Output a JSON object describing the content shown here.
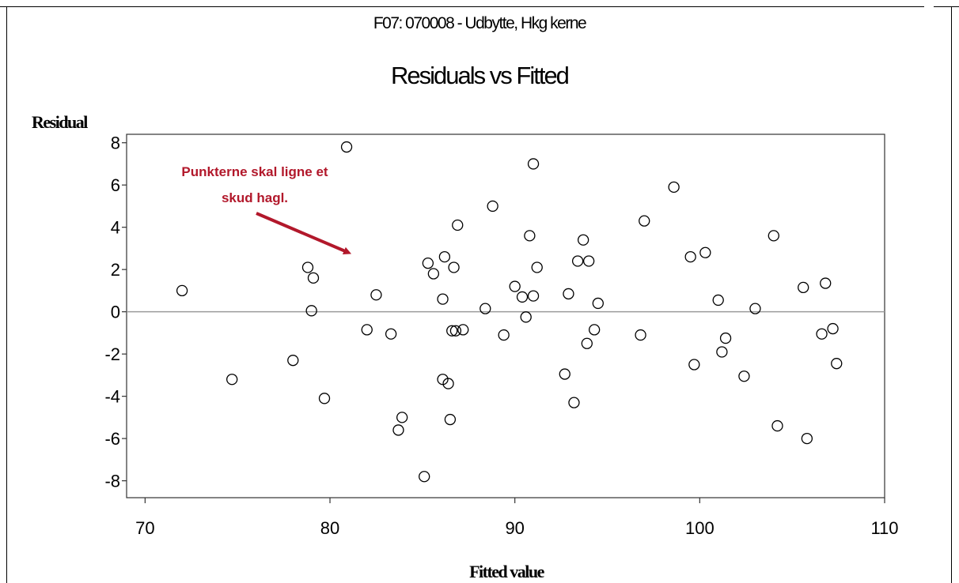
{
  "supertitle": "F07: 070008 - Udbytte, Hkg kerne",
  "chart_data": {
    "type": "scatter",
    "title": "Residuals vs Fitted",
    "xlabel": "Fitted value",
    "ylabel": "Residual",
    "xlim": [
      69,
      110
    ],
    "ylim": [
      -8.8,
      8.4
    ],
    "xticks": [
      70,
      80,
      90,
      100,
      110
    ],
    "yticks": [
      -8,
      -6,
      -4,
      -2,
      0,
      2,
      4,
      6,
      8
    ],
    "reference_line_y": 0,
    "grid": false,
    "marker": "open-circle",
    "points": [
      {
        "x": 72.0,
        "y": 1.0
      },
      {
        "x": 74.7,
        "y": -3.2
      },
      {
        "x": 78.0,
        "y": -2.3
      },
      {
        "x": 78.8,
        "y": 2.1
      },
      {
        "x": 79.0,
        "y": 0.05
      },
      {
        "x": 79.1,
        "y": 1.6
      },
      {
        "x": 79.7,
        "y": -4.1
      },
      {
        "x": 80.9,
        "y": 7.8
      },
      {
        "x": 82.0,
        "y": -0.85
      },
      {
        "x": 82.5,
        "y": 0.8
      },
      {
        "x": 83.3,
        "y": -1.05
      },
      {
        "x": 83.7,
        "y": -5.6
      },
      {
        "x": 83.9,
        "y": -5.0
      },
      {
        "x": 85.1,
        "y": -7.8
      },
      {
        "x": 85.3,
        "y": 2.3
      },
      {
        "x": 85.6,
        "y": 1.8
      },
      {
        "x": 86.1,
        "y": -3.2
      },
      {
        "x": 86.1,
        "y": 0.6
      },
      {
        "x": 86.2,
        "y": 2.6
      },
      {
        "x": 86.4,
        "y": -3.4
      },
      {
        "x": 86.5,
        "y": -5.1
      },
      {
        "x": 86.6,
        "y": -0.9
      },
      {
        "x": 86.7,
        "y": 2.1
      },
      {
        "x": 86.8,
        "y": -0.9
      },
      {
        "x": 86.9,
        "y": 4.1
      },
      {
        "x": 87.2,
        "y": -0.85
      },
      {
        "x": 88.4,
        "y": 0.15
      },
      {
        "x": 88.8,
        "y": 5.0
      },
      {
        "x": 89.4,
        "y": -1.1
      },
      {
        "x": 90.0,
        "y": 1.2
      },
      {
        "x": 90.4,
        "y": 0.7
      },
      {
        "x": 90.6,
        "y": -0.25
      },
      {
        "x": 90.8,
        "y": 3.6
      },
      {
        "x": 91.0,
        "y": 7.0
      },
      {
        "x": 91.0,
        "y": 0.75
      },
      {
        "x": 91.2,
        "y": 2.1
      },
      {
        "x": 92.7,
        "y": -2.95
      },
      {
        "x": 92.9,
        "y": 0.85
      },
      {
        "x": 93.2,
        "y": -4.3
      },
      {
        "x": 93.4,
        "y": 2.4
      },
      {
        "x": 93.7,
        "y": 3.4
      },
      {
        "x": 93.9,
        "y": -1.5
      },
      {
        "x": 94.0,
        "y": 2.4
      },
      {
        "x": 94.3,
        "y": -0.85
      },
      {
        "x": 94.5,
        "y": 0.4
      },
      {
        "x": 96.8,
        "y": -1.1
      },
      {
        "x": 97.0,
        "y": 4.3
      },
      {
        "x": 98.6,
        "y": 5.9
      },
      {
        "x": 99.5,
        "y": 2.6
      },
      {
        "x": 99.7,
        "y": -2.5
      },
      {
        "x": 100.3,
        "y": 2.8
      },
      {
        "x": 101.0,
        "y": 0.55
      },
      {
        "x": 101.2,
        "y": -1.9
      },
      {
        "x": 101.4,
        "y": -1.25
      },
      {
        "x": 102.4,
        "y": -3.05
      },
      {
        "x": 103.0,
        "y": 0.15
      },
      {
        "x": 104.0,
        "y": 3.6
      },
      {
        "x": 104.2,
        "y": -5.4
      },
      {
        "x": 105.6,
        "y": 1.15
      },
      {
        "x": 105.8,
        "y": -6.0
      },
      {
        "x": 106.6,
        "y": -1.05
      },
      {
        "x": 106.8,
        "y": 1.35
      },
      {
        "x": 107.2,
        "y": -0.8
      },
      {
        "x": 107.4,
        "y": -2.45
      }
    ],
    "annotation": {
      "lines": [
        "Punkterne skal ligne et",
        "skud hagl."
      ],
      "color": "#b2182b",
      "arrow_tip": {
        "x": 81.0,
        "y": 2.8
      }
    }
  }
}
